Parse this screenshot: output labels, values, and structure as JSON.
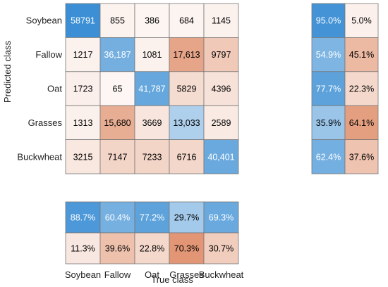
{
  "chart_data": {
    "type": "heatmap",
    "title": "",
    "xlabel": "True class",
    "ylabel": "Predicted class",
    "classes": [
      "Soybean",
      "Fallow",
      "Oat",
      "Grasses",
      "Buckwheat"
    ],
    "matrix": [
      [
        "58791",
        "855",
        "386",
        "684",
        "1145"
      ],
      [
        "1217",
        "36,187",
        "1081",
        "17,613",
        "9797"
      ],
      [
        "1723",
        "65",
        "41,787",
        "5829",
        "4396"
      ],
      [
        "1313",
        "15,680",
        "3669",
        "13,033",
        "2589"
      ],
      [
        "3215",
        "7147",
        "7233",
        "6716",
        "40,401"
      ]
    ],
    "row_summary": [
      [
        "95.0%",
        "5.0%"
      ],
      [
        "54.9%",
        "45.1%"
      ],
      [
        "77.7%",
        "22.3%"
      ],
      [
        "35.9%",
        "64.1%"
      ],
      [
        "62.4%",
        "37.6%"
      ]
    ],
    "column_summary": [
      [
        "88.7%",
        "60.4%",
        "77.2%",
        "29.7%",
        "69.3%"
      ],
      [
        "11.3%",
        "39.6%",
        "22.8%",
        "70.3%",
        "30.7%"
      ]
    ],
    "colors": {
      "correct": "#3c8fd4",
      "incorrect": "#d9764a",
      "border": "#777777",
      "text_dark": "#000000",
      "text_light": "#ffffff"
    }
  }
}
